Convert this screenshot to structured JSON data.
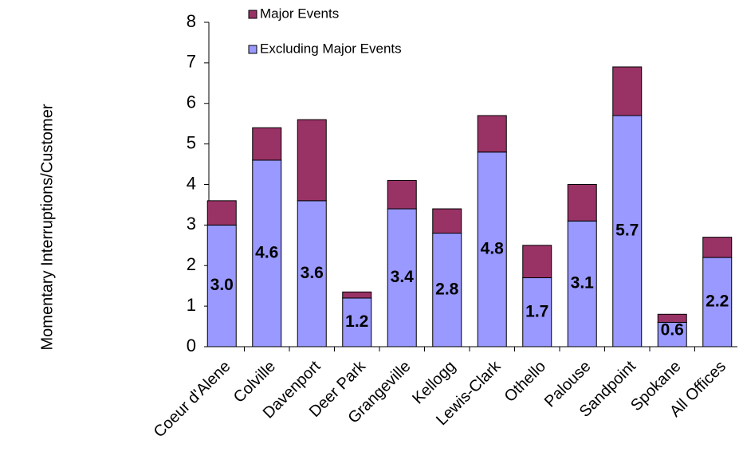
{
  "chart_data": {
    "type": "stacked-bar",
    "y_label": "Momentary Interruptions/Customer",
    "categories": [
      "Coeur d'Alene",
      "Colville",
      "Davenport",
      "Deer Park",
      "Grangeville",
      "Kellogg",
      "Lewis-Clark",
      "Othello",
      "Palouse",
      "Sandpoint",
      "Spokane",
      "All Offices"
    ],
    "series": [
      {
        "name": "Excluding Major Events",
        "color": "#9999ff",
        "values": [
          3.0,
          4.6,
          3.6,
          1.2,
          3.4,
          2.8,
          4.8,
          1.7,
          3.1,
          5.7,
          0.6,
          2.2
        ],
        "value_labels": [
          "3.0",
          "4.6",
          "3.6",
          "1.2",
          "3.4",
          "2.8",
          "4.8",
          "1.7",
          "3.1",
          "5.7",
          "0.6",
          "2.2"
        ]
      },
      {
        "name": "Major Events",
        "color": "#993366",
        "values": [
          0.6,
          0.8,
          2.0,
          0.15,
          0.7,
          0.6,
          0.9,
          0.8,
          0.9,
          1.2,
          0.2,
          0.5
        ]
      }
    ],
    "ylim": [
      0,
      8
    ],
    "yticks": [
      0,
      1,
      2,
      3,
      4,
      5,
      6,
      7,
      8
    ]
  }
}
